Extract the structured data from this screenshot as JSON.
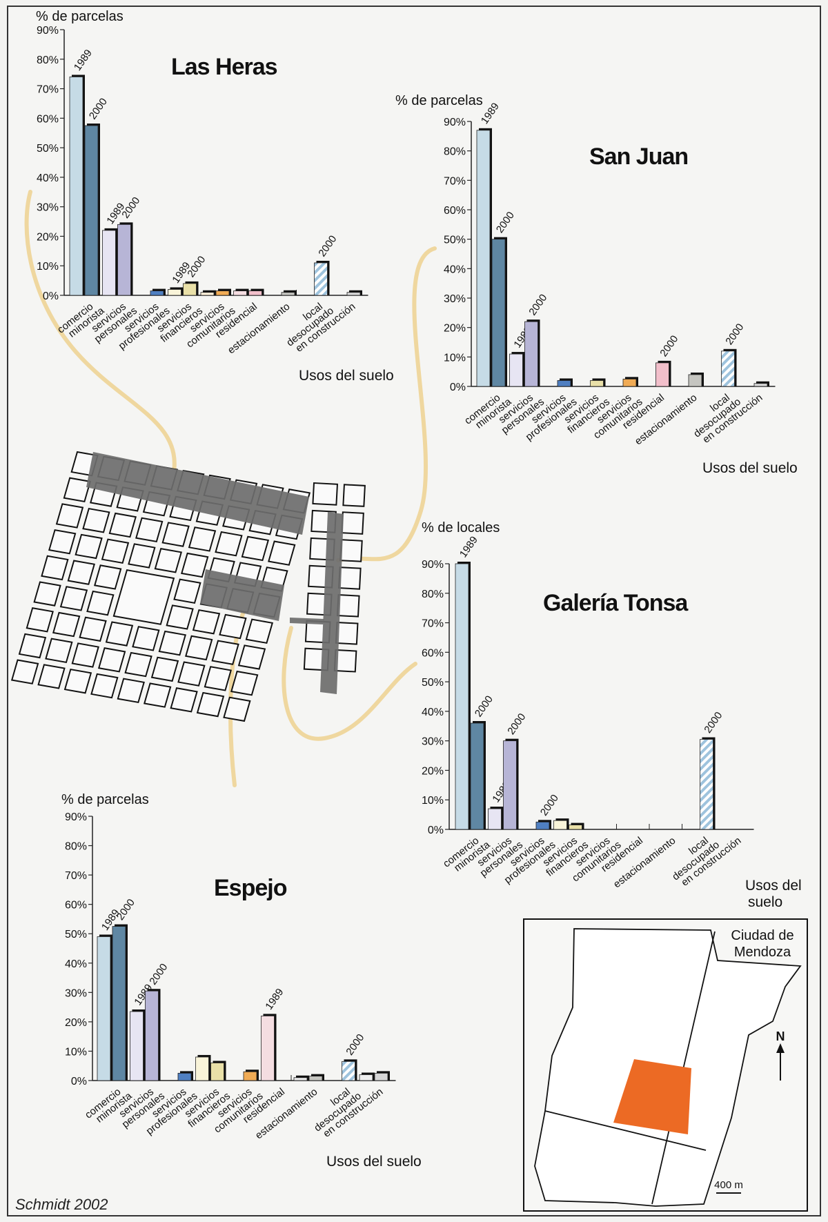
{
  "credit": "Schmidt 2002",
  "category_labels": [
    [
      "comercio",
      "minorista"
    ],
    [
      "servicios",
      "personales"
    ],
    [
      "servicios",
      "profesionales"
    ],
    [
      "servicios",
      "financieros"
    ],
    [
      "servicios",
      "comunitarios"
    ],
    [
      "residencial"
    ],
    [
      "estacionamiento"
    ],
    [
      "local",
      "desocupado"
    ],
    [
      "en construcción"
    ]
  ],
  "colors": {
    "1989": [
      "#c6dbe6",
      "#e7e5f3",
      "#dfe9f4",
      "#f9f4d9",
      "#fff0d9",
      "#f4dde1",
      "#e8e8e8",
      "#ffffff",
      "#eeeeee"
    ],
    "2000": [
      "#5f87a3",
      "#b7b5d6",
      "#4f7fc1",
      "#e9e0a8",
      "#f0ab55",
      "#f2bfca",
      "#c5c5c0",
      "#9ec3dd",
      "#d6d6d6"
    ],
    "hatch": "#9ec3dd",
    "connector": "#efd79f",
    "highlight": "#ec6a24",
    "street": "#6d6d6d"
  },
  "chart_data": [
    {
      "type": "bar",
      "title": "Las Heras",
      "ylabel": "% de parcelas",
      "xlabel": "Usos del suelo",
      "ylim": [
        0,
        90
      ],
      "yticks": [
        "0%",
        "10%",
        "20%",
        "30%",
        "40%",
        "50%",
        "60%",
        "70%",
        "80%",
        "90%"
      ],
      "categories": [
        "comercio minorista",
        "servicios personales",
        "servicios profesionales",
        "servicios financieros",
        "servicios comunitarios",
        "residencial",
        "estacionamiento",
        "local desocupado",
        "en construcción"
      ],
      "series": [
        {
          "name": "1989",
          "values": [
            74,
            22,
            0,
            2,
            1,
            1.5,
            0,
            0,
            0
          ]
        },
        {
          "name": "2000",
          "values": [
            57.5,
            24,
            1.5,
            4,
            1.5,
            1.5,
            1,
            11,
            1
          ]
        }
      ],
      "data_labels": [
        [
          "1989",
          "2000"
        ],
        [
          "1989",
          "2000"
        ],
        [],
        [
          "1989",
          "2000"
        ],
        [],
        [],
        [],
        [
          "",
          "2000"
        ],
        []
      ]
    },
    {
      "type": "bar",
      "title": "San Juan",
      "ylabel": "% de parcelas",
      "xlabel": "Usos del suelo",
      "ylim": [
        0,
        90
      ],
      "yticks": [
        "0%",
        "10%",
        "20%",
        "30%",
        "40%",
        "50%",
        "60%",
        "70%",
        "80%",
        "90%"
      ],
      "categories": [
        "comercio minorista",
        "servicios personales",
        "servicios profesionales",
        "servicios financieros",
        "servicios comunitarios",
        "residencial",
        "estacionamiento",
        "local desocupado",
        "en construcción"
      ],
      "series": [
        {
          "name": "1989",
          "values": [
            87,
            11,
            0,
            0,
            0,
            0,
            0,
            0,
            0
          ]
        },
        {
          "name": "2000",
          "values": [
            50,
            22,
            2,
            2,
            2.5,
            8,
            4,
            12,
            1
          ]
        }
      ],
      "data_labels": [
        [
          "1989",
          "2000"
        ],
        [
          "1989",
          "2000"
        ],
        [],
        [],
        [],
        [
          "",
          "2000"
        ],
        [],
        [
          "",
          "2000"
        ],
        []
      ]
    },
    {
      "type": "bar",
      "title": "Galería Tonsa",
      "ylabel": "% de locales",
      "xlabel": "Usos del suelo",
      "ylim": [
        0,
        90
      ],
      "yticks": [
        "0%",
        "10%",
        "20%",
        "30%",
        "40%",
        "50%",
        "60%",
        "70%",
        "80%",
        "90%"
      ],
      "categories": [
        "comercio minorista",
        "servicios personales",
        "servicios profesionales",
        "servicios financieros",
        "servicios comunitarios",
        "residencial",
        "estacionamiento",
        "local desocupado",
        "en construcción"
      ],
      "series": [
        {
          "name": "1989",
          "values": [
            90,
            7,
            0,
            3,
            0,
            0,
            0,
            0,
            0
          ]
        },
        {
          "name": "2000",
          "values": [
            36,
            30,
            2.5,
            1.5,
            0,
            0,
            0,
            30.5,
            0
          ]
        }
      ],
      "data_labels": [
        [
          "1989",
          "2000"
        ],
        [
          "1989",
          "2000"
        ],
        [
          "",
          "2000"
        ],
        [],
        [],
        [],
        [],
        [
          "",
          "2000"
        ],
        []
      ]
    },
    {
      "type": "bar",
      "title": "Espejo",
      "ylabel": "% de parcelas",
      "xlabel": "Usos del suelo",
      "ylim": [
        0,
        90
      ],
      "yticks": [
        "0%",
        "10%",
        "20%",
        "30%",
        "40%",
        "50%",
        "60%",
        "70%",
        "80%",
        "90%"
      ],
      "categories": [
        "comercio minorista",
        "servicios personales",
        "servicios profesionales",
        "servicios financieros",
        "servicios comunitarios",
        "residencial",
        "estacionamiento",
        "local desocupado",
        "en construcción"
      ],
      "series": [
        {
          "name": "1989",
          "values": [
            49,
            23.5,
            0,
            8,
            0,
            22,
            1,
            0,
            2
          ]
        },
        {
          "name": "2000",
          "values": [
            52.5,
            30.5,
            2.5,
            6,
            3,
            0,
            1.5,
            6.5,
            2.5
          ]
        }
      ],
      "data_labels": [
        [
          "1989",
          "2000"
        ],
        [
          "1989",
          "2000"
        ],
        [],
        [],
        [],
        [
          "1989",
          ""
        ],
        [],
        [
          "",
          "2000"
        ],
        []
      ]
    }
  ],
  "inset_map": {
    "label_line1": "Ciudad de",
    "label_line2": "Mendoza",
    "north": "N",
    "scale": "400 m"
  }
}
